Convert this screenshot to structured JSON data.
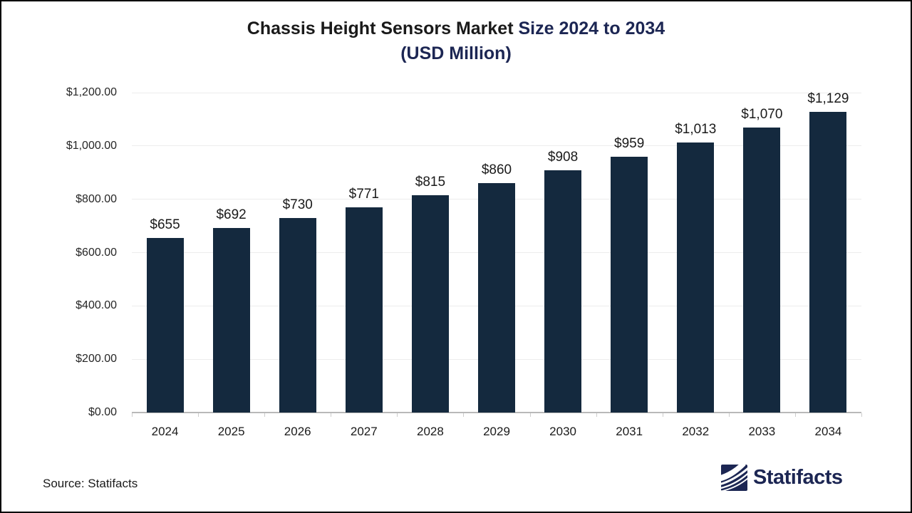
{
  "header": {
    "title_part1": "Chassis Height Sensors Market ",
    "title_part2": "Size 2024 to 2034",
    "title_line2": "(USD Million)"
  },
  "chart_data": {
    "type": "bar",
    "title": "Chassis Height Sensors Market Size 2024 to 2034 (USD Million)",
    "categories": [
      "2024",
      "2025",
      "2026",
      "2027",
      "2028",
      "2029",
      "2030",
      "2031",
      "2032",
      "2033",
      "2034"
    ],
    "values": [
      655,
      692,
      730,
      771,
      815,
      860,
      908,
      959,
      1013,
      1070,
      1129
    ],
    "value_labels": [
      "$655",
      "$692",
      "$730",
      "$771",
      "$815",
      "$860",
      "$908",
      "$959",
      "$1,013",
      "$1,070",
      "$1,129"
    ],
    "xlabel": "",
    "ylabel": "",
    "ylim": [
      0,
      1200
    ],
    "y_ticks": [
      0,
      200,
      400,
      600,
      800,
      1000,
      1200
    ],
    "y_tick_labels": [
      "$0.00",
      "$200.00",
      "$400.00",
      "$600.00",
      "$800.00",
      "$1,000.00",
      "$1,200.00"
    ],
    "grid": true,
    "legend": "none"
  },
  "footer": {
    "source": "Source: Statifacts",
    "brand": "Statifacts"
  },
  "colors": {
    "bar": "#14293e",
    "title_black": "#1a1a1a",
    "title_navy": "#1c2653",
    "gridline": "#ededed",
    "axis_line": "#b9b9b9",
    "tick": "#cccccc",
    "label": "#1a1a1a"
  }
}
